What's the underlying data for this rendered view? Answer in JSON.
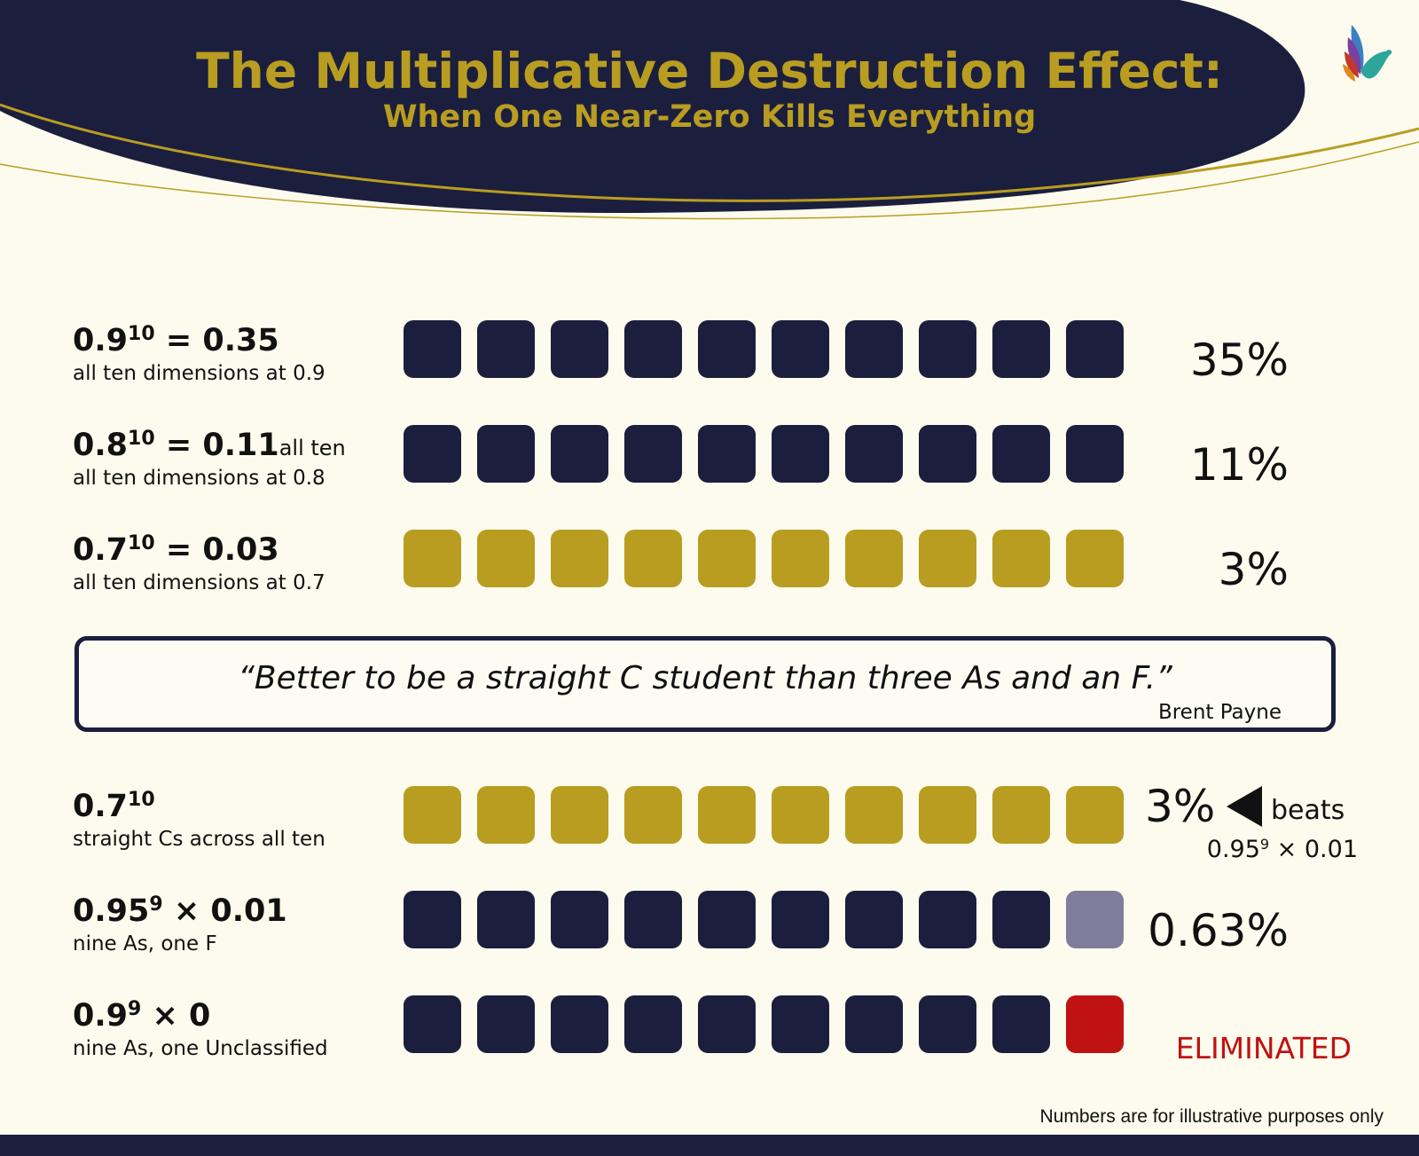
{
  "header": {
    "title": "The Multiplicative Destruction Effect:",
    "subtitle": "When One Near-Zero Kills Everything",
    "logo_icon": "bird-icon"
  },
  "colors": {
    "navy": "#1b1f3d",
    "gold": "#b99d21",
    "grey": "#7f7d9a",
    "red": "#c01212",
    "background": "#fcfbee"
  },
  "rows_top": [
    {
      "base": "0.9",
      "exp": "10",
      "rest": " = 0.35",
      "extra": "",
      "desc": "all ten dimensions at 0.9",
      "result": "35%",
      "blocks": [
        "navy",
        "navy",
        "navy",
        "navy",
        "navy",
        "navy",
        "navy",
        "navy",
        "navy",
        "navy"
      ]
    },
    {
      "base": "0.8",
      "exp": "10",
      "rest": " = 0.11",
      "extra": "all ten",
      "desc": "all ten dimensions at 0.8",
      "result": "11%",
      "blocks": [
        "navy",
        "navy",
        "navy",
        "navy",
        "navy",
        "navy",
        "navy",
        "navy",
        "navy",
        "navy"
      ]
    },
    {
      "base": "0.7",
      "exp": "10",
      "rest": " = 0.03",
      "extra": "",
      "desc": "all ten dimensions at 0.7",
      "result": "3%",
      "blocks": [
        "gold",
        "gold",
        "gold",
        "gold",
        "gold",
        "gold",
        "gold",
        "gold",
        "gold",
        "gold"
      ]
    }
  ],
  "quote": {
    "text": "“Better to be a straight C student than three As and an F.”",
    "author": "Brent Payne"
  },
  "rows_bottom": [
    {
      "base": "0.7",
      "exp": "10",
      "rest": "",
      "extra": "",
      "desc": "straight Cs across all ten",
      "result": "",
      "blocks": [
        "gold",
        "gold",
        "gold",
        "gold",
        "gold",
        "gold",
        "gold",
        "gold",
        "gold",
        "gold"
      ]
    },
    {
      "base": "0.95",
      "exp": "9",
      "rest": " × 0.01",
      "extra": "",
      "desc": "nine As, one F",
      "result": "0.63%",
      "blocks": [
        "navy",
        "navy",
        "navy",
        "navy",
        "navy",
        "navy",
        "navy",
        "navy",
        "navy",
        "grey"
      ]
    },
    {
      "base": "0.9",
      "exp": "9",
      "rest": " × 0",
      "extra": "",
      "desc": "nine As, one Unclassified",
      "result": "ELIMINATED",
      "blocks": [
        "navy",
        "navy",
        "navy",
        "navy",
        "navy",
        "navy",
        "navy",
        "navy",
        "navy",
        "red"
      ]
    }
  ],
  "beats": {
    "pct": "3%",
    "arrow_icon": "left-triangle-icon",
    "word": "beats",
    "formula_base": "0.95",
    "formula_exp": "9",
    "formula_rest": " × 0.01"
  },
  "footnote": "Numbers are for illustrative purposes only"
}
